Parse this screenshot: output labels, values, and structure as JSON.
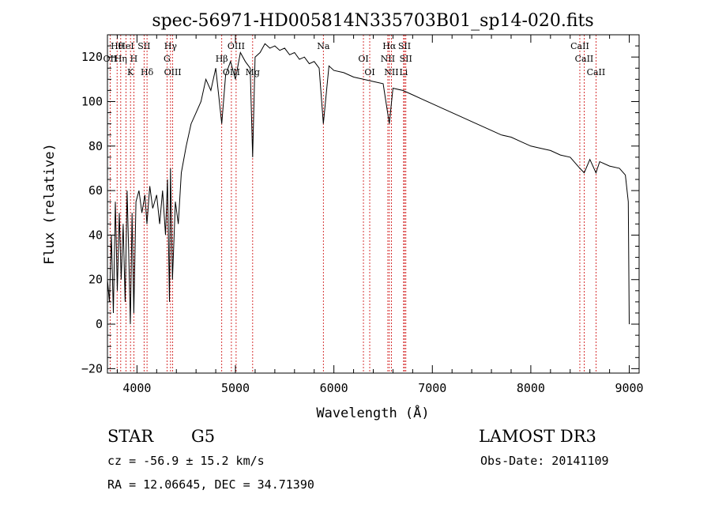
{
  "chart_data": {
    "type": "line",
    "title": "spec-56971-HD005814N335703B01_sp14-020.fits",
    "xlabel": "Wavelength (Å)",
    "ylabel": "Flux (relative)",
    "xlim": [
      3700,
      9100
    ],
    "ylim": [
      -22,
      130
    ],
    "xticks": [
      4000,
      5000,
      6000,
      7000,
      8000,
      9000
    ],
    "yticks": [
      -20,
      0,
      20,
      40,
      60,
      80,
      100,
      120
    ],
    "grid": false,
    "line_color": "#000000",
    "marker_color": "#cc0000",
    "series": [
      {
        "x": [
          3700,
          3720,
          3740,
          3760,
          3780,
          3800,
          3820,
          3840,
          3860,
          3880,
          3900,
          3920,
          3933,
          3950,
          3968,
          3990,
          4020,
          4050,
          4080,
          4101,
          4130,
          4160,
          4200,
          4230,
          4260,
          4290,
          4310,
          4330,
          4340,
          4360,
          4390,
          4420,
          4450,
          4500,
          4550,
          4600,
          4650,
          4700,
          4750,
          4800,
          4861,
          4900,
          4950,
          5000,
          5050,
          5100,
          5150,
          5175,
          5200,
          5250,
          5300,
          5350,
          5400,
          5450,
          5500,
          5550,
          5600,
          5650,
          5700,
          5750,
          5800,
          5850,
          5893,
          5950,
          6000,
          6100,
          6200,
          6300,
          6400,
          6500,
          6563,
          6600,
          6700,
          6800,
          6900,
          7000,
          7100,
          7200,
          7300,
          7400,
          7500,
          7600,
          7700,
          7800,
          7900,
          8000,
          8100,
          8200,
          8300,
          8400,
          8498,
          8542,
          8600,
          8662,
          8700,
          8800,
          8900,
          8960,
          8990,
          9000
        ],
        "y": [
          20,
          10,
          40,
          5,
          55,
          15,
          50,
          20,
          45,
          10,
          60,
          25,
          0,
          50,
          5,
          55,
          60,
          50,
          58,
          45,
          62,
          52,
          58,
          45,
          60,
          40,
          65,
          10,
          70,
          20,
          55,
          45,
          68,
          80,
          90,
          95,
          100,
          110,
          105,
          115,
          90,
          112,
          118,
          110,
          122,
          118,
          115,
          75,
          120,
          122,
          126,
          124,
          125,
          123,
          124,
          121,
          122,
          119,
          120,
          117,
          118,
          115,
          90,
          116,
          114,
          113,
          111,
          110,
          109,
          108,
          90,
          106,
          105,
          103,
          101,
          99,
          97,
          95,
          93,
          91,
          89,
          87,
          85,
          84,
          82,
          80,
          79,
          78,
          76,
          75,
          70,
          68,
          74,
          68,
          73,
          71,
          70,
          67,
          55,
          0
        ]
      }
    ],
    "lines": [
      {
        "label": "Hθ",
        "x": 3798
      },
      {
        "label": "OII",
        "x": 3727
      },
      {
        "label": "K",
        "x": 3934
      },
      {
        "label": "HeI",
        "x": 3889
      },
      {
        "label": "Hη",
        "x": 3835
      },
      {
        "label": "Hδ",
        "x": 4102
      },
      {
        "label": "SII",
        "x": 4072
      },
      {
        "label": "H",
        "x": 3968
      },
      {
        "label": "OIII",
        "x": 4363
      },
      {
        "label": "Hγ",
        "x": 4341
      },
      {
        "label": "G",
        "x": 4305
      },
      {
        "label": "OIII",
        "x": 4959
      },
      {
        "label": "OIII",
        "x": 5007
      },
      {
        "label": "Hβ",
        "x": 4861
      },
      {
        "label": "Mg",
        "x": 5175
      },
      {
        "label": "Na",
        "x": 5893
      },
      {
        "label": "OI",
        "x": 6300
      },
      {
        "label": "OI",
        "x": 6364
      },
      {
        "label": "Hα",
        "x": 6563
      },
      {
        "label": "NII",
        "x": 6548
      },
      {
        "label": "NII",
        "x": 6584
      },
      {
        "label": "SII",
        "x": 6717
      },
      {
        "label": "SII",
        "x": 6731
      },
      {
        "label": "Li",
        "x": 6708
      },
      {
        "label": "CaII",
        "x": 8498
      },
      {
        "label": "CaII",
        "x": 8542
      },
      {
        "label": "CaII",
        "x": 8662
      }
    ]
  },
  "info": {
    "object_class": "STAR",
    "subclass": "G5",
    "survey": "LAMOST DR3",
    "redshift_line": "cz = -56.9 ± 15.2 km/s",
    "obs_date": "Obs-Date: 20141109",
    "coords": "RA =  12.06645, DEC =  34.71390"
  }
}
